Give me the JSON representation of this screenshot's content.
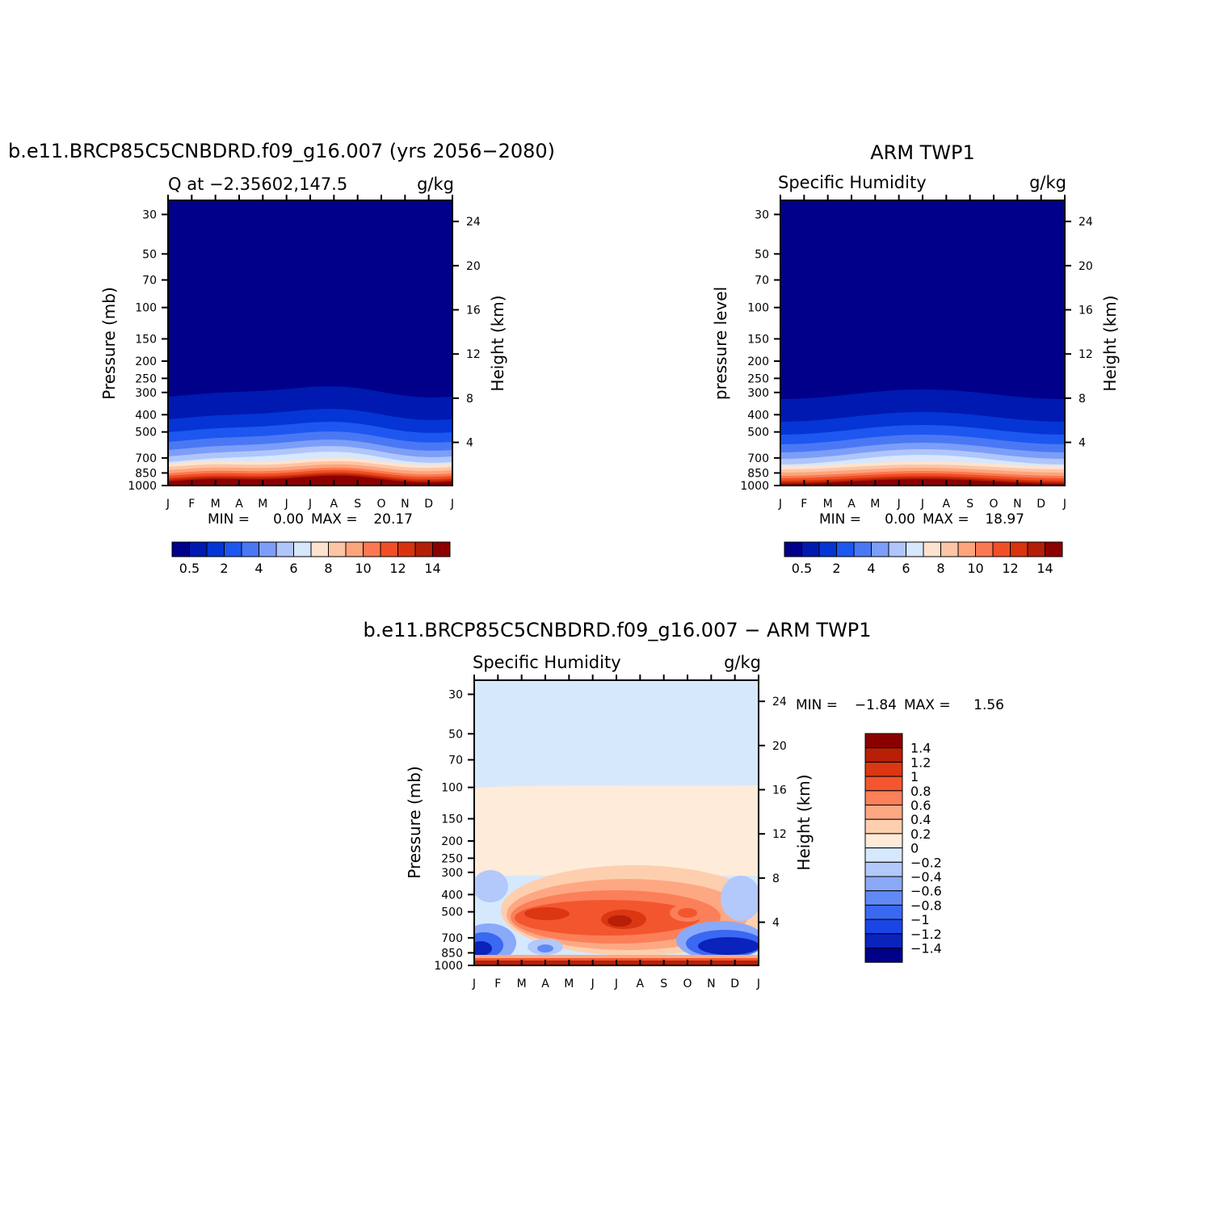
{
  "figure": {
    "colors": {
      "seq": [
        "#00008a",
        "#0019b0",
        "#0535d4",
        "#1d57f0",
        "#4a78f5",
        "#7d9ef8",
        "#b0c6fb",
        "#d7e7fc",
        "#fde3cf",
        "#fdc5a5",
        "#fda47c",
        "#fb7852",
        "#f14f25",
        "#d8330d",
        "#b31e07",
        "#8b0000"
      ],
      "div": [
        "#00008a",
        "#0a23bd",
        "#1a45e6",
        "#3b68f2",
        "#6189f5",
        "#8aa9f9",
        "#b3c8fb",
        "#d6e8fc",
        "#feebd9",
        "#fdcfae",
        "#fda883",
        "#fb7f58",
        "#f3562e",
        "#dc3613",
        "#b81f06",
        "#8b0000"
      ]
    }
  },
  "chart_data": [
    {
      "type": "heatmap",
      "title": "b.e11.BRCP85C5CNBDRD.f09_g16.007 (yrs 2056−2080)",
      "subtitle_left": "Q at −2.35602,147.5",
      "units": "g/kg",
      "ylabel": "Pressure (mb)",
      "ylabel_right": "Height (km)",
      "x_ticks": [
        "J",
        "F",
        "M",
        "A",
        "M",
        "J",
        "J",
        "A",
        "S",
        "O",
        "N",
        "D",
        "J"
      ],
      "y_ticks": [
        30,
        50,
        70,
        100,
        150,
        200,
        250,
        300,
        400,
        500,
        700,
        850,
        1000
      ],
      "y2_ticks": [
        24,
        20,
        16,
        12,
        8,
        4
      ],
      "ylim": [
        1000,
        25
      ],
      "minmax_text": {
        "min_label": "MIN =",
        "min": "0.00",
        "max_label": "MAX =",
        "max": "20.17"
      },
      "colorbar": {
        "orientation": "horizontal",
        "labels": [
          "0.5",
          "2",
          "4",
          "6",
          "8",
          "10",
          "12",
          "14"
        ]
      },
      "min": 0.0,
      "max": 20.17
    },
    {
      "type": "heatmap",
      "title": "ARM TWP1",
      "subtitle_left": "Specific Humidity",
      "units": "g/kg",
      "ylabel": "pressure level",
      "ylabel_right": "Height (km)",
      "x_ticks": [
        "J",
        "F",
        "M",
        "A",
        "M",
        "J",
        "J",
        "A",
        "S",
        "O",
        "N",
        "D",
        "J"
      ],
      "y_ticks": [
        30,
        50,
        70,
        100,
        150,
        200,
        250,
        300,
        400,
        500,
        700,
        850,
        1000
      ],
      "y2_ticks": [
        24,
        20,
        16,
        12,
        8,
        4
      ],
      "ylim": [
        1000,
        25
      ],
      "minmax_text": {
        "min_label": "MIN =",
        "min": "0.00",
        "max_label": "MAX =",
        "max": "18.97"
      },
      "colorbar": {
        "orientation": "horizontal",
        "labels": [
          "0.5",
          "2",
          "4",
          "6",
          "8",
          "10",
          "12",
          "14"
        ]
      },
      "min": 0.0,
      "max": 18.97
    },
    {
      "type": "heatmap",
      "title": "b.e11.BRCP85C5CNBDRD.f09_g16.007 − ARM TWP1",
      "subtitle_left": "Specific Humidity",
      "units": "g/kg",
      "ylabel": "Pressure (mb)",
      "ylabel_right": "Height (km)",
      "x_ticks": [
        "J",
        "F",
        "M",
        "A",
        "M",
        "J",
        "J",
        "A",
        "S",
        "O",
        "N",
        "D",
        "J"
      ],
      "y_ticks": [
        30,
        50,
        70,
        100,
        150,
        200,
        250,
        300,
        400,
        500,
        700,
        850,
        1000
      ],
      "y2_ticks": [
        24,
        20,
        16,
        12,
        8,
        4
      ],
      "ylim": [
        1000,
        25
      ],
      "minmax_text": {
        "min_label": "MIN =",
        "min": "−1.84",
        "max_label": "MAX =",
        "max": "1.56"
      },
      "colorbar": {
        "orientation": "vertical",
        "labels": [
          "1.4",
          "1.2",
          "1",
          "0.8",
          "0.6",
          "0.4",
          "0.2",
          "0",
          "−0.2",
          "−0.4",
          "−0.6",
          "−0.8",
          "−1",
          "−1.2",
          "−1.4"
        ]
      },
      "min": -1.84,
      "max": 1.56
    }
  ]
}
